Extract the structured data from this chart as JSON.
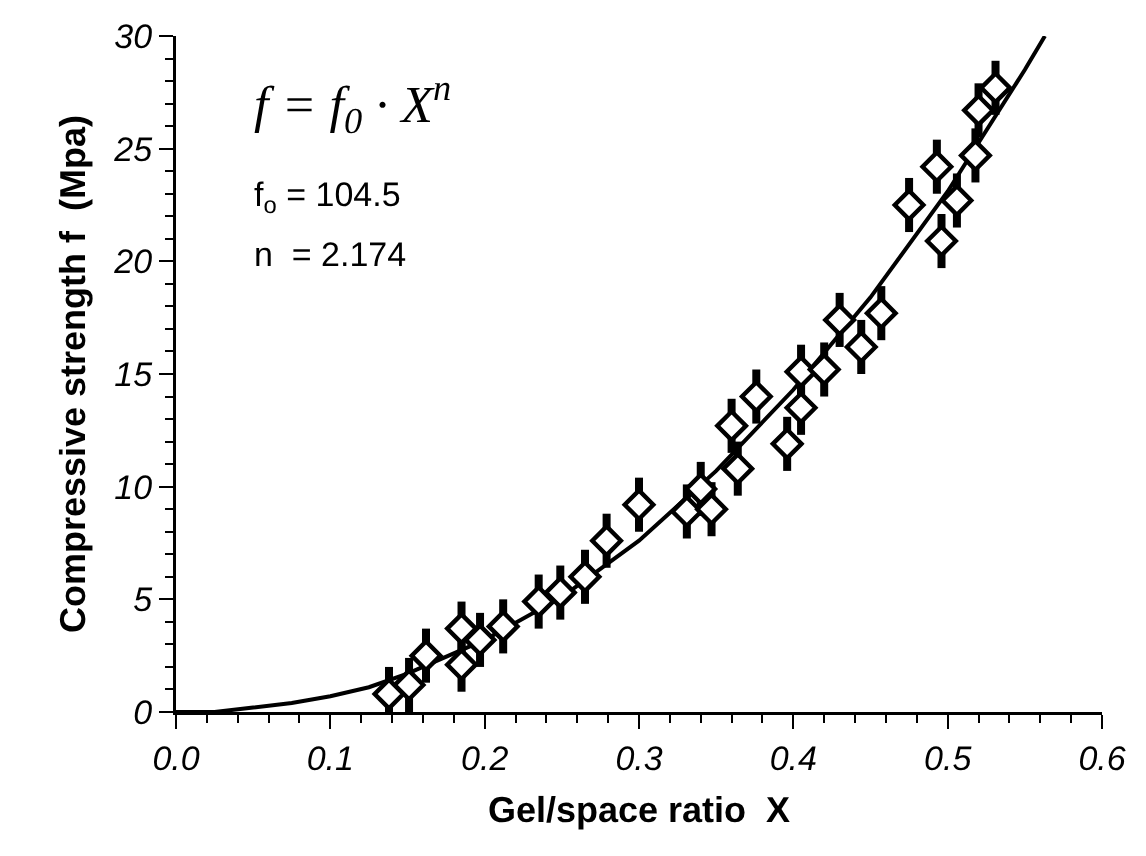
{
  "chart_data": {
    "type": "scatter",
    "xlabel": "Gel/space ratio  X",
    "ylabel": "Compressive strength f  (Mpa)",
    "xlim": [
      0,
      0.6
    ],
    "xticks": [
      {
        "value": 0,
        "label": "0.0"
      },
      0.1,
      0.2,
      0.3,
      0.4,
      0.5,
      {
        "value": 0.6,
        "label": "0.6"
      }
    ],
    "ylim": [
      0,
      30
    ],
    "yticks": [
      0,
      5,
      10,
      15,
      20,
      25,
      30
    ],
    "grid": false,
    "annotations": [
      "f = f$_{0}$ · X$^{n}$",
      "f$_{o}$ = 104.5",
      "n  = 2.174"
    ],
    "series": [
      {
        "color": "#000000",
        "marker": "diamond",
        "x": [
          0.138,
          0.151,
          0.162,
          0.185,
          0.185,
          0.197,
          0.212,
          0.235,
          0.249,
          0.265,
          0.279,
          0.3,
          0.331,
          0.34,
          0.347,
          0.36,
          0.364,
          0.376,
          0.396,
          0.405,
          0.405,
          0.42,
          0.43,
          0.444,
          0.457,
          0.475,
          0.493,
          0.496,
          0.506,
          0.518,
          0.52,
          0.531
        ],
        "values": [
          0.8,
          1.2,
          2.5,
          3.7,
          2.1,
          3.2,
          3.8,
          4.9,
          5.3,
          6.0,
          7.6,
          9.2,
          8.9,
          9.9,
          9.0,
          12.7,
          10.8,
          14.0,
          11.9,
          13.5,
          15.1,
          15.2,
          17.4,
          16.2,
          17.7,
          22.5,
          24.2,
          20.9,
          22.7,
          24.7,
          26.7,
          27.7
        ],
        "errors": [
          1.2,
          1.2,
          1.2,
          1.2,
          1.2,
          1.2,
          1.2,
          1.2,
          1.2,
          1.2,
          1.2,
          1.2,
          1.2,
          1.2,
          1.2,
          1.2,
          1.2,
          1.2,
          1.2,
          1.2,
          1.2,
          1.2,
          1.2,
          1.2,
          1.2,
          1.2,
          1.2,
          1.2,
          1.2,
          1.2,
          1.2,
          1.2
        ]
      },
      {
        "type": "line",
        "color": "#000000",
        "marker": "none",
        "line_style": "solid",
        "x": [
          0,
          0.025,
          0.05,
          0.075,
          0.1,
          0.125,
          0.15,
          0.2,
          0.25,
          0.3,
          0.35,
          0.4,
          0.45,
          0.5,
          0.55,
          0.563
        ],
        "values": [
          0,
          0.0,
          0.2,
          0.4,
          0.7,
          1.1,
          1.7,
          3.2,
          5.1,
          7.6,
          10.7,
          14.3,
          18.4,
          23.1,
          28.5,
          30.0
        ]
      }
    ]
  }
}
